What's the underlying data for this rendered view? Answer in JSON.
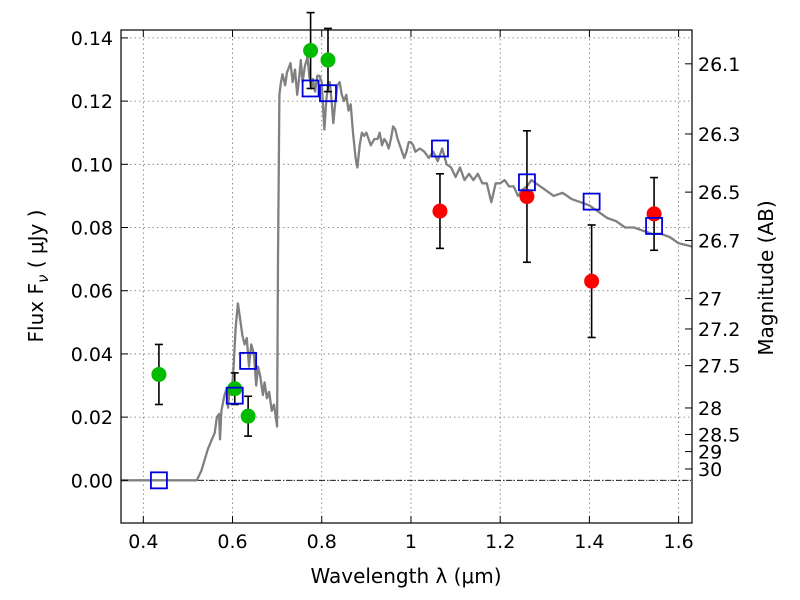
{
  "chart_data": {
    "type": "scatter",
    "xlabel": "Wavelength  λ (μm)",
    "ylabel": "Flux  F",
    "ylabel_sub": "ν",
    "ylabel_units": " ( μJy )",
    "y2label": "Magnitude (AB)",
    "xlim": [
      0.35,
      1.63
    ],
    "ylim": [
      -0.0135,
      0.1425
    ],
    "grid": true,
    "x_ticks": [
      0.4,
      0.6,
      0.8,
      1.0,
      1.2,
      1.4,
      1.6
    ],
    "x_tick_labels": [
      "0.4",
      "0.6",
      "0.8",
      "1",
      "1.2",
      "1.4",
      "1.6"
    ],
    "y_ticks": [
      0.0,
      0.02,
      0.04,
      0.06,
      0.08,
      0.1,
      0.12,
      0.14
    ],
    "y_tick_labels": [
      "0.00",
      "0.02",
      "0.04",
      "0.06",
      "0.08",
      "0.10",
      "0.12",
      "0.14"
    ],
    "y2_ticks": [
      {
        "label": "26.1",
        "flux": 0.1318
      },
      {
        "label": "26.3",
        "flux": 0.1096
      },
      {
        "label": "26.5",
        "flux": 0.0912
      },
      {
        "label": "26.7",
        "flux": 0.0759
      },
      {
        "label": "27",
        "flux": 0.0575
      },
      {
        "label": "27.2",
        "flux": 0.0479
      },
      {
        "label": "27.5",
        "flux": 0.0363
      },
      {
        "label": "28",
        "flux": 0.0229
      },
      {
        "label": "28.5",
        "flux": 0.0145
      },
      {
        "label": "29",
        "flux": 0.0091
      },
      {
        "label": "30",
        "flux": 0.0036
      }
    ],
    "model_color": "#808080",
    "model_curve": [
      [
        0.35,
        0.0
      ],
      [
        0.52,
        0.0
      ],
      [
        0.53,
        0.003
      ],
      [
        0.545,
        0.01
      ],
      [
        0.56,
        0.015
      ],
      [
        0.565,
        0.02
      ],
      [
        0.57,
        0.021
      ],
      [
        0.572,
        0.013
      ],
      [
        0.575,
        0.022
      ],
      [
        0.582,
        0.027
      ],
      [
        0.587,
        0.029
      ],
      [
        0.59,
        0.023
      ],
      [
        0.593,
        0.029
      ],
      [
        0.598,
        0.027
      ],
      [
        0.602,
        0.035
      ],
      [
        0.607,
        0.048
      ],
      [
        0.612,
        0.056
      ],
      [
        0.618,
        0.05
      ],
      [
        0.622,
        0.046
      ],
      [
        0.627,
        0.043
      ],
      [
        0.632,
        0.045
      ],
      [
        0.637,
        0.036
      ],
      [
        0.642,
        0.043
      ],
      [
        0.648,
        0.04
      ],
      [
        0.653,
        0.03
      ],
      [
        0.657,
        0.036
      ],
      [
        0.662,
        0.033
      ],
      [
        0.668,
        0.027
      ],
      [
        0.672,
        0.031
      ],
      [
        0.677,
        0.026
      ],
      [
        0.682,
        0.028
      ],
      [
        0.688,
        0.022
      ],
      [
        0.693,
        0.024
      ],
      [
        0.7,
        0.017
      ],
      [
        0.702,
        0.07
      ],
      [
        0.705,
        0.122
      ],
      [
        0.708,
        0.1255
      ],
      [
        0.712,
        0.1285
      ],
      [
        0.718,
        0.125
      ],
      [
        0.722,
        0.129
      ],
      [
        0.73,
        0.132
      ],
      [
        0.735,
        0.126
      ],
      [
        0.74,
        0.13
      ],
      [
        0.745,
        0.122
      ],
      [
        0.75,
        0.128
      ],
      [
        0.753,
        0.133
      ],
      [
        0.757,
        0.126
      ],
      [
        0.762,
        0.131
      ],
      [
        0.768,
        0.134
      ],
      [
        0.772,
        0.128
      ],
      [
        0.777,
        0.124
      ],
      [
        0.78,
        0.127
      ],
      [
        0.785,
        0.123
      ],
      [
        0.79,
        0.128
      ],
      [
        0.795,
        0.128
      ],
      [
        0.8,
        0.126
      ],
      [
        0.803,
        0.118
      ],
      [
        0.806,
        0.111
      ],
      [
        0.81,
        0.12
      ],
      [
        0.815,
        0.126
      ],
      [
        0.818,
        0.126
      ],
      [
        0.822,
        0.12
      ],
      [
        0.826,
        0.113
      ],
      [
        0.83,
        0.119
      ],
      [
        0.835,
        0.125
      ],
      [
        0.84,
        0.126
      ],
      [
        0.845,
        0.122
      ],
      [
        0.85,
        0.12
      ],
      [
        0.855,
        0.122
      ],
      [
        0.86,
        0.117
      ],
      [
        0.865,
        0.119
      ],
      [
        0.87,
        0.11
      ],
      [
        0.876,
        0.102
      ],
      [
        0.88,
        0.099
      ],
      [
        0.885,
        0.106
      ],
      [
        0.89,
        0.11
      ],
      [
        0.895,
        0.109
      ],
      [
        0.9,
        0.11
      ],
      [
        0.91,
        0.106
      ],
      [
        0.918,
        0.108
      ],
      [
        0.925,
        0.108
      ],
      [
        0.93,
        0.11
      ],
      [
        0.935,
        0.106
      ],
      [
        0.94,
        0.108
      ],
      [
        0.945,
        0.107
      ],
      [
        0.95,
        0.105
      ],
      [
        0.955,
        0.108
      ],
      [
        0.96,
        0.112
      ],
      [
        0.965,
        0.111
      ],
      [
        0.97,
        0.108
      ],
      [
        0.975,
        0.106
      ],
      [
        0.98,
        0.104
      ],
      [
        0.985,
        0.102
      ],
      [
        0.99,
        0.104
      ],
      [
        0.995,
        0.107
      ],
      [
        1.0,
        0.107
      ],
      [
        1.005,
        0.106
      ],
      [
        1.01,
        0.104
      ],
      [
        1.02,
        0.105
      ],
      [
        1.03,
        0.104
      ],
      [
        1.04,
        0.102
      ],
      [
        1.05,
        0.104
      ],
      [
        1.06,
        0.101
      ],
      [
        1.07,
        0.105
      ],
      [
        1.08,
        0.1
      ],
      [
        1.09,
        0.099
      ],
      [
        1.1,
        0.096
      ],
      [
        1.11,
        0.099
      ],
      [
        1.12,
        0.095
      ],
      [
        1.13,
        0.097
      ],
      [
        1.14,
        0.095
      ],
      [
        1.15,
        0.097
      ],
      [
        1.16,
        0.094
      ],
      [
        1.17,
        0.094
      ],
      [
        1.18,
        0.088
      ],
      [
        1.19,
        0.094
      ],
      [
        1.2,
        0.094
      ],
      [
        1.21,
        0.095
      ],
      [
        1.22,
        0.093
      ],
      [
        1.23,
        0.093
      ],
      [
        1.24,
        0.09
      ],
      [
        1.25,
        0.092
      ],
      [
        1.26,
        0.093
      ],
      [
        1.27,
        0.095
      ],
      [
        1.28,
        0.094
      ],
      [
        1.3,
        0.092
      ],
      [
        1.32,
        0.09
      ],
      [
        1.34,
        0.091
      ],
      [
        1.36,
        0.089
      ],
      [
        1.38,
        0.088
      ],
      [
        1.4,
        0.087
      ],
      [
        1.42,
        0.085
      ],
      [
        1.44,
        0.083
      ],
      [
        1.46,
        0.082
      ],
      [
        1.48,
        0.08
      ],
      [
        1.5,
        0.08
      ],
      [
        1.52,
        0.079
      ],
      [
        1.54,
        0.078
      ],
      [
        1.56,
        0.078
      ],
      [
        1.58,
        0.077
      ],
      [
        1.6,
        0.075
      ],
      [
        1.63,
        0.074
      ]
    ],
    "series": [
      {
        "color": "#00bb00",
        "marker": "circle",
        "points": [
          {
            "x": 0.435,
            "y": 0.0335,
            "err": 0.0095
          },
          {
            "x": 0.605,
            "y": 0.029,
            "err": 0.005
          },
          {
            "x": 0.635,
            "y": 0.0203,
            "err": 0.0063
          },
          {
            "x": 0.775,
            "y": 0.136,
            "err": 0.012
          },
          {
            "x": 0.814,
            "y": 0.133,
            "err": 0.01
          }
        ]
      },
      {
        "color": "#ff0000",
        "marker": "circle",
        "points": [
          {
            "x": 1.065,
            "y": 0.0852,
            "err": 0.0118
          },
          {
            "x": 1.26,
            "y": 0.0898,
            "err": 0.0208
          },
          {
            "x": 1.405,
            "y": 0.063,
            "err": 0.0178
          },
          {
            "x": 1.545,
            "y": 0.0843,
            "err": 0.0115
          }
        ]
      },
      {
        "color": "#0000dd",
        "marker": "open-square",
        "points": [
          {
            "x": 0.435,
            "y": 0.0
          },
          {
            "x": 0.605,
            "y": 0.0268
          },
          {
            "x": 0.635,
            "y": 0.0378
          },
          {
            "x": 0.775,
            "y": 0.124
          },
          {
            "x": 0.814,
            "y": 0.1225
          },
          {
            "x": 1.065,
            "y": 0.105
          },
          {
            "x": 1.26,
            "y": 0.0943
          },
          {
            "x": 1.405,
            "y": 0.0882
          },
          {
            "x": 1.545,
            "y": 0.0805
          }
        ]
      }
    ]
  }
}
